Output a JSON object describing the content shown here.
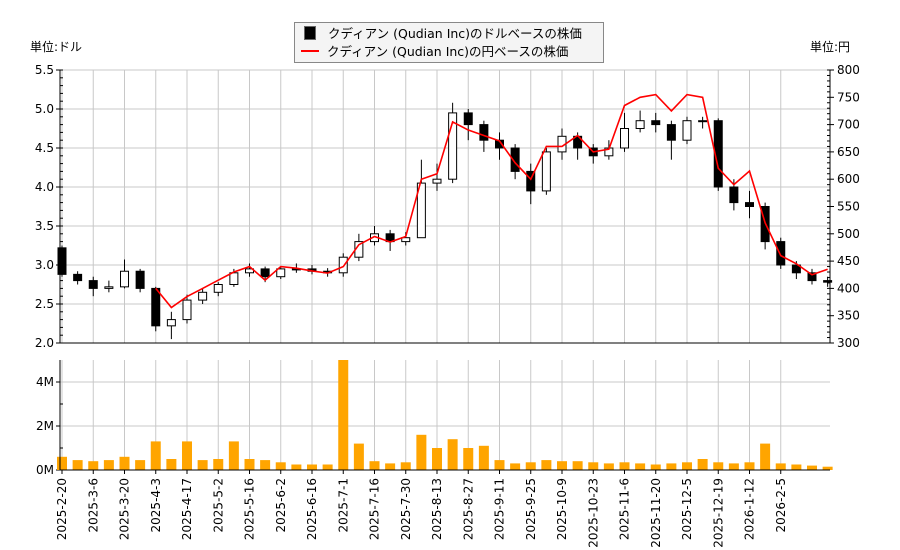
{
  "legend": {
    "usd_series": "クディアン (Qudian Inc)のドルベースの株価",
    "jpy_series": "クディアン (Qudian Inc)の円ベースの株価"
  },
  "units": {
    "left": "単位:ドル",
    "right": "単位:円"
  },
  "colors": {
    "candle_up": "#ffffff",
    "candle_down": "#000000",
    "jpy_line": "#ff0000",
    "volume": "#ffa500",
    "grid": "#c8c8c8"
  },
  "chart_data": {
    "type": "candlestick+line+bar",
    "resolution": "weekly (approximate)",
    "left_axis": {
      "range": [
        2.0,
        5.5
      ],
      "ticks": [
        "2.0",
        "2.5",
        "3.0",
        "3.5",
        "4.0",
        "4.5",
        "5.0",
        "5.5"
      ]
    },
    "right_axis": {
      "range": [
        300,
        800
      ],
      "ticks": [
        "300",
        "350",
        "400",
        "450",
        "500",
        "550",
        "600",
        "650",
        "700",
        "750",
        "800"
      ]
    },
    "volume_axis": {
      "range": [
        0,
        5000000
      ],
      "ticks": [
        "0M",
        "2M",
        "4M"
      ]
    },
    "grid": true,
    "legend_placement": "top-center",
    "x_tick_labels": [
      "2025-2-20",
      "2025-3-6",
      "2025-3-20",
      "2025-4-3",
      "2025-4-17",
      "2025-5-2",
      "2025-5-16",
      "2025-6-2",
      "2025-6-16",
      "2025-7-1",
      "2025-7-16",
      "2025-7-30",
      "2025-8-13",
      "2025-8-27",
      "2025-9-11",
      "2025-9-25",
      "2025-10-9",
      "2025-10-23",
      "2025-11-6",
      "2025-11-20",
      "2025-12-5",
      "2025-12-19",
      "2026-1-12",
      "2026-2-5"
    ],
    "usd_ohlc": [
      [
        3.22,
        3.25,
        2.85,
        2.88
      ],
      [
        2.88,
        2.92,
        2.75,
        2.8
      ],
      [
        2.8,
        2.85,
        2.6,
        2.7
      ],
      [
        2.7,
        2.8,
        2.65,
        2.72
      ],
      [
        2.72,
        3.07,
        2.7,
        2.92
      ],
      [
        2.92,
        2.95,
        2.65,
        2.7
      ],
      [
        2.7,
        2.72,
        2.15,
        2.22
      ],
      [
        2.22,
        2.4,
        2.05,
        2.3
      ],
      [
        2.3,
        2.62,
        2.25,
        2.55
      ],
      [
        2.55,
        2.7,
        2.5,
        2.65
      ],
      [
        2.65,
        2.78,
        2.6,
        2.75
      ],
      [
        2.75,
        2.95,
        2.72,
        2.9
      ],
      [
        2.9,
        3.02,
        2.85,
        2.95
      ],
      [
        2.95,
        2.98,
        2.78,
        2.85
      ],
      [
        2.85,
        2.98,
        2.82,
        2.95
      ],
      [
        2.95,
        3.02,
        2.9,
        2.95
      ],
      [
        2.95,
        3.0,
        2.88,
        2.92
      ],
      [
        2.92,
        2.96,
        2.85,
        2.9
      ],
      [
        2.9,
        3.15,
        2.85,
        3.1
      ],
      [
        3.1,
        3.4,
        3.05,
        3.3
      ],
      [
        3.3,
        3.5,
        3.25,
        3.4
      ],
      [
        3.4,
        3.45,
        3.18,
        3.3
      ],
      [
        3.3,
        3.42,
        3.25,
        3.35
      ],
      [
        3.35,
        4.35,
        3.35,
        4.05
      ],
      [
        4.05,
        4.3,
        3.95,
        4.1
      ],
      [
        4.1,
        5.08,
        4.05,
        4.95
      ],
      [
        4.95,
        5.0,
        4.6,
        4.8
      ],
      [
        4.8,
        4.85,
        4.45,
        4.6
      ],
      [
        4.6,
        4.7,
        4.35,
        4.5
      ],
      [
        4.5,
        4.55,
        4.1,
        4.2
      ],
      [
        4.2,
        4.3,
        3.78,
        3.95
      ],
      [
        3.95,
        4.5,
        3.9,
        4.45
      ],
      [
        4.45,
        4.75,
        4.35,
        4.65
      ],
      [
        4.65,
        4.7,
        4.35,
        4.5
      ],
      [
        4.5,
        4.55,
        4.3,
        4.4
      ],
      [
        4.4,
        4.6,
        4.35,
        4.5
      ],
      [
        4.5,
        4.95,
        4.45,
        4.75
      ],
      [
        4.75,
        4.98,
        4.7,
        4.85
      ],
      [
        4.85,
        4.95,
        4.7,
        4.8
      ],
      [
        4.8,
        4.85,
        4.35,
        4.6
      ],
      [
        4.6,
        4.9,
        4.55,
        4.85
      ],
      [
        4.85,
        4.9,
        4.75,
        4.85
      ],
      [
        4.85,
        4.88,
        3.95,
        4.0
      ],
      [
        4.0,
        4.1,
        3.7,
        3.8
      ],
      [
        3.8,
        3.95,
        3.6,
        3.75
      ],
      [
        3.75,
        3.8,
        3.2,
        3.3
      ],
      [
        3.3,
        3.35,
        2.95,
        3.0
      ],
      [
        3.0,
        3.05,
        2.82,
        2.9
      ],
      [
        2.9,
        2.95,
        2.75,
        2.8
      ],
      [
        2.8,
        2.85,
        2.72,
        2.78
      ]
    ],
    "jpy_close": [
      null,
      null,
      null,
      null,
      null,
      null,
      400,
      365,
      385,
      400,
      415,
      430,
      440,
      415,
      440,
      437,
      432,
      428,
      440,
      480,
      495,
      485,
      495,
      600,
      610,
      705,
      690,
      680,
      670,
      630,
      600,
      660,
      660,
      680,
      650,
      655,
      735,
      750,
      755,
      725,
      755,
      750,
      620,
      590,
      615,
      520,
      460,
      445,
      425,
      435
    ],
    "volume": [
      600000,
      450000,
      400000,
      450000,
      600000,
      450000,
      1300000,
      500000,
      1300000,
      450000,
      500000,
      1300000,
      500000,
      450000,
      350000,
      250000,
      250000,
      250000,
      5000000,
      1200000,
      400000,
      300000,
      350000,
      1600000,
      1000000,
      1400000,
      1000000,
      1100000,
      450000,
      300000,
      350000,
      450000,
      400000,
      400000,
      350000,
      300000,
      350000,
      300000,
      250000,
      300000,
      350000,
      500000,
      350000,
      300000,
      350000,
      1200000,
      300000,
      250000,
      200000,
      150000
    ]
  }
}
